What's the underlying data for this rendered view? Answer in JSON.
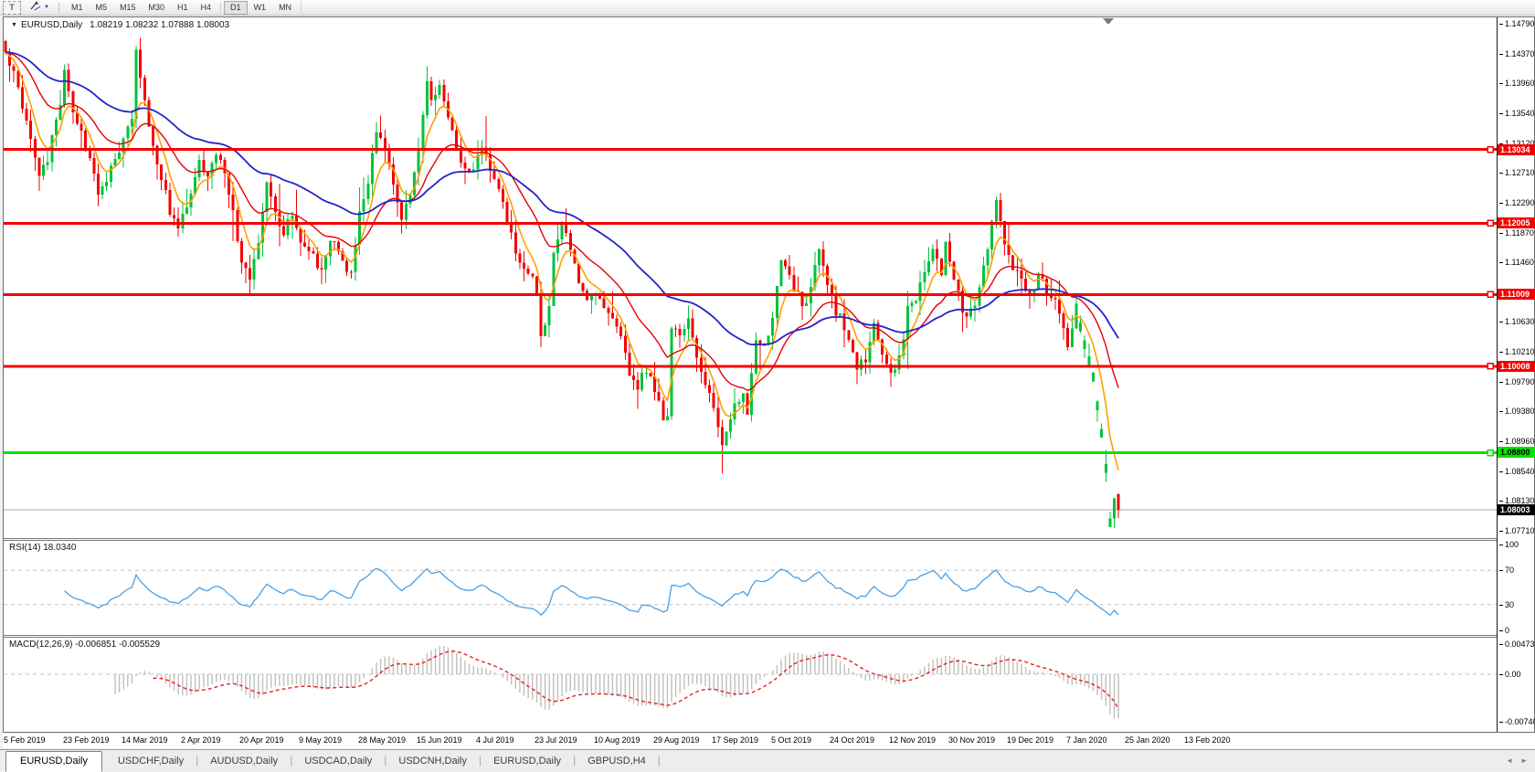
{
  "toolbar": {
    "text_tool_label": "T",
    "timeframes": [
      "M1",
      "M5",
      "M15",
      "M30",
      "H1",
      "H4",
      "D1",
      "W1",
      "MN"
    ],
    "active_timeframe": "D1"
  },
  "chart_header": {
    "collapse_icon": "▼",
    "symbol_label": "EURUSD,Daily",
    "ohlc_text": "1.08219 1.08232 1.07888 1.08003"
  },
  "indicator_labels": {
    "rsi": "RSI(14) 18.0340",
    "macd": "MACD(12,26,9) -0.006851 -0.005529"
  },
  "tabs": {
    "items": [
      "EURUSD,Daily",
      "USDCHF,Daily",
      "AUDUSD,Daily",
      "USDCAD,Daily",
      "USDCNH,Daily",
      "EURUSD,Daily",
      "GBPUSD,H4"
    ],
    "active_index": 0,
    "scroll_left": "◄",
    "scroll_right": "►"
  },
  "chart_data": {
    "type": "candlestick",
    "symbol": "EURUSD",
    "timeframe": "Daily",
    "last_ohlc": {
      "open": 1.08219,
      "high": 1.08232,
      "low": 1.07888,
      "close": 1.08003
    },
    "colors": {
      "bull": "#00c23c",
      "bear": "#f40000",
      "ma_fast": "#ffa000",
      "ma_medium": "#e60000",
      "ma_slow": "#2424c8",
      "rsi_line": "#4aa0e4",
      "rsi_guide": "#c2c2c2",
      "macd_histogram": "#bfbfbf",
      "macd_signal": "#e42222",
      "hline_red": "#f40000",
      "hline_green": "#00e400",
      "current_price_line": "#a8a8a8",
      "current_tag_bg": "#000000"
    },
    "y_axis": {
      "visible_ticks": [
        "1.14790",
        "1.14370",
        "1.13960",
        "1.13540",
        "1.13120",
        "1.12710",
        "1.12290",
        "1.11870",
        "1.11460",
        "1.10630",
        "1.10210",
        "1.09790",
        "1.09380",
        "1.08960",
        "1.08540",
        "1.08130",
        "1.07710"
      ],
      "top_price": 1.1479,
      "tick_step": 0.0042
    },
    "x_axis": {
      "date_labels": [
        "5 Feb 2019",
        "23 Feb 2019",
        "14 Mar 2019",
        "2 Apr 2019",
        "20 Apr 2019",
        "9 May 2019",
        "28 May 2019",
        "15 Jun 2019",
        "4 Jul 2019",
        "23 Jul 2019",
        "10 Aug 2019",
        "29 Aug 2019",
        "17 Sep 2019",
        "5 Oct 2019",
        "24 Oct 2019",
        "12 Nov 2019",
        "30 Nov 2019",
        "19 Dec 2019",
        "7 Jan 2020",
        "25 Jan 2020",
        "13 Feb 2020"
      ],
      "candles_per_label": 14
    },
    "candle_count": 265,
    "price_anchors": [
      [
        0,
        1.1435
      ],
      [
        2,
        1.1408
      ],
      [
        5,
        1.1345
      ],
      [
        8,
        1.1268
      ],
      [
        10,
        1.1292
      ],
      [
        13,
        1.1368
      ],
      [
        14,
        1.1418
      ],
      [
        16,
        1.1352
      ],
      [
        18,
        1.1325
      ],
      [
        20,
        1.1296
      ],
      [
        22,
        1.1242
      ],
      [
        24,
        1.1262
      ],
      [
        27,
        1.1305
      ],
      [
        30,
        1.1352
      ],
      [
        31,
        1.1438
      ],
      [
        33,
        1.1372
      ],
      [
        35,
        1.1305
      ],
      [
        37,
        1.1262
      ],
      [
        39,
        1.1218
      ],
      [
        41,
        1.1192
      ],
      [
        43,
        1.1222
      ],
      [
        46,
        1.1288
      ],
      [
        48,
        1.1262
      ],
      [
        50,
        1.13
      ],
      [
        52,
        1.1268
      ],
      [
        54,
        1.1212
      ],
      [
        56,
        1.1152
      ],
      [
        58,
        1.1122
      ],
      [
        60,
        1.1178
      ],
      [
        62,
        1.1252
      ],
      [
        64,
        1.1215
      ],
      [
        66,
        1.1188
      ],
      [
        68,
        1.1212
      ],
      [
        70,
        1.1178
      ],
      [
        73,
        1.1152
      ],
      [
        75,
        1.1132
      ],
      [
        77,
        1.1182
      ],
      [
        79,
        1.1162
      ],
      [
        82,
        1.1128
      ],
      [
        84,
        1.1215
      ],
      [
        86,
        1.1262
      ],
      [
        88,
        1.1332
      ],
      [
        90,
        1.1302
      ],
      [
        92,
        1.1252
      ],
      [
        94,
        1.1212
      ],
      [
        96,
        1.1242
      ],
      [
        98,
        1.1312
      ],
      [
        100,
        1.1398
      ],
      [
        101,
        1.1372
      ],
      [
        103,
        1.1388
      ],
      [
        105,
        1.1352
      ],
      [
        107,
        1.1302
      ],
      [
        109,
        1.1272
      ],
      [
        111,
        1.1282
      ],
      [
        113,
        1.1308
      ],
      [
        115,
        1.1278
      ],
      [
        117,
        1.1242
      ],
      [
        119,
        1.1205
      ],
      [
        121,
        1.1162
      ],
      [
        123,
        1.1142
      ],
      [
        125,
        1.1122
      ],
      [
        126,
        1.1102
      ],
      [
        127,
        1.1042
      ],
      [
        128,
        1.1062
      ],
      [
        129,
        1.1088
      ],
      [
        130,
        1.1152
      ],
      [
        132,
        1.1198
      ],
      [
        134,
        1.1168
      ],
      [
        136,
        1.1122
      ],
      [
        138,
        1.1092
      ],
      [
        140,
        1.1108
      ],
      [
        142,
        1.1078
      ],
      [
        144,
        1.1062
      ],
      [
        146,
        1.1042
      ],
      [
        148,
        1.0992
      ],
      [
        150,
        1.0972
      ],
      [
        152,
        1.0998
      ],
      [
        154,
        1.0962
      ],
      [
        156,
        1.0932
      ],
      [
        157,
        1.0928
      ],
      [
        158,
        1.1058
      ],
      [
        160,
        1.1038
      ],
      [
        162,
        1.1068
      ],
      [
        164,
        1.1018
      ],
      [
        166,
        1.0978
      ],
      [
        168,
        1.0942
      ],
      [
        170,
        1.0892
      ],
      [
        171,
        1.0912
      ],
      [
        173,
        1.0942
      ],
      [
        175,
        1.0958
      ],
      [
        176,
        1.0938
      ],
      [
        177,
        1.0992
      ],
      [
        178,
        1.1038
      ],
      [
        180,
        1.1028
      ],
      [
        182,
        1.1068
      ],
      [
        184,
        1.1148
      ],
      [
        186,
        1.1122
      ],
      [
        188,
        1.1098
      ],
      [
        190,
        1.1082
      ],
      [
        192,
        1.1148
      ],
      [
        193,
        1.1162
      ],
      [
        195,
        1.1118
      ],
      [
        197,
        1.1078
      ],
      [
        199,
        1.1058
      ],
      [
        201,
        1.1022
      ],
      [
        202,
        1.0998
      ],
      [
        204,
        1.1012
      ],
      [
        206,
        1.1058
      ],
      [
        208,
        1.1022
      ],
      [
        210,
        1.0988
      ],
      [
        212,
        1.1012
      ],
      [
        214,
        1.1078
      ],
      [
        216,
        1.1098
      ],
      [
        218,
        1.1128
      ],
      [
        220,
        1.1168
      ],
      [
        222,
        1.1128
      ],
      [
        223,
        1.1178
      ],
      [
        225,
        1.1118
      ],
      [
        227,
        1.1082
      ],
      [
        228,
        1.1072
      ],
      [
        230,
        1.1088
      ],
      [
        232,
        1.1138
      ],
      [
        234,
        1.1198
      ],
      [
        235,
        1.1232
      ],
      [
        237,
        1.1168
      ],
      [
        239,
        1.1138
      ],
      [
        241,
        1.1118
      ],
      [
        243,
        1.1098
      ],
      [
        245,
        1.1128
      ],
      [
        247,
        1.1108
      ],
      [
        249,
        1.1088
      ],
      [
        251,
        1.1058
      ],
      [
        252,
        1.1022
      ],
      [
        253,
        1.1048
      ],
      [
        254,
        1.1082
      ],
      [
        255,
        1.1058
      ],
      [
        256,
        1.1032
      ],
      [
        257,
        1.1018
      ],
      [
        258,
        1.0992
      ],
      [
        259,
        1.0958
      ],
      [
        260,
        1.0918
      ],
      [
        261,
        1.0862
      ],
      [
        262,
        1.0795
      ],
      [
        263,
        1.08219
      ],
      [
        264,
        1.08003
      ]
    ],
    "candle_overrides": {
      "31": {
        "high": 1.1448
      },
      "158": {
        "low": 1.0926
      },
      "262": {
        "low": 1.0777
      },
      "264": {
        "open": 1.08219,
        "high": 1.08232,
        "low": 1.07888,
        "close": 1.08003
      }
    },
    "green_tail_start": 255,
    "horizontal_lines": [
      {
        "price": 1.13034,
        "label": "1.13034",
        "kind": "red"
      },
      {
        "price": 1.12005,
        "label": "1.12005",
        "kind": "red"
      },
      {
        "price": 1.11009,
        "label": "1.11009",
        "kind": "red"
      },
      {
        "price": 1.10008,
        "label": "1.10008",
        "kind": "red"
      },
      {
        "price": 1.088,
        "label": "1.08800",
        "kind": "green"
      }
    ],
    "current_price": {
      "price": 1.08003,
      "label": "1.08003"
    },
    "indicators": {
      "moving_averages": [
        {
          "name": "fast",
          "period": 6,
          "color_key": "ma_fast",
          "width": 1.6
        },
        {
          "name": "medium",
          "period": 20,
          "color_key": "ma_medium",
          "width": 1.4
        },
        {
          "name": "slow",
          "period": 52,
          "color_key": "ma_slow",
          "width": 1.8
        }
      ],
      "rsi": {
        "period": 14,
        "last_value": 18.034,
        "scale_labels": [
          {
            "label": "100",
            "value": 100
          },
          {
            "label": "70",
            "value": 70
          },
          {
            "label": "30",
            "value": 30
          },
          {
            "label": "0",
            "value": 0
          }
        ],
        "guide_levels": [
          70,
          30
        ]
      },
      "macd": {
        "fast": 12,
        "slow": 26,
        "signal": 9,
        "last_main": -0.006851,
        "last_signal": -0.005529,
        "scale_labels": [
          {
            "label": "0.00473",
            "value": 0.00473
          },
          {
            "label": "0.00",
            "value": 0
          },
          {
            "label": "-0.00740",
            "value": -0.0074
          }
        ]
      }
    },
    "visible_price_range": {
      "top": 1.14879,
      "bottom": 1.07606
    }
  }
}
